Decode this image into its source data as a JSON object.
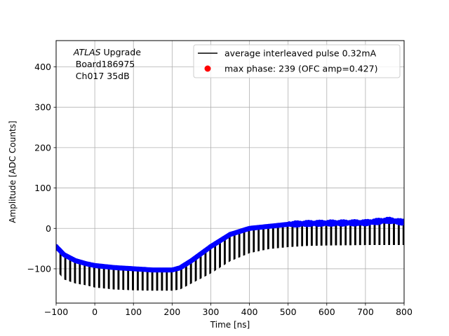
{
  "chart_data": {
    "type": "line",
    "title": "",
    "xlabel": "Time [ns]",
    "ylabel": "Amplitude [ADC Counts]",
    "xlim": [
      -100,
      800
    ],
    "ylim": [
      -185,
      465
    ],
    "xticks": [
      -100,
      0,
      100,
      200,
      300,
      400,
      500,
      600,
      700,
      800
    ],
    "yticks": [
      -100,
      0,
      100,
      200,
      300,
      400
    ],
    "grid": true,
    "legend_position": "top-right",
    "annotation": {
      "line1_italic": "ATLAS",
      "line1_rest": " Upgrade",
      "line2": "Board186975",
      "line3": "Ch017 35dB"
    },
    "series": [
      {
        "name": "average interleaved pulse 0.32mA",
        "kind": "line",
        "color": "#000000",
        "description_of_shape": "sawtooth; upper envelope follows the blue points, drops to lower envelope in each period",
        "period_ns": 12.5,
        "upper_envelope": {
          "x": [
            -100,
            -80,
            -50,
            -20,
            0,
            50,
            100,
            150,
            200,
            220,
            250,
            300,
            350,
            400,
            450,
            500,
            550,
            600,
            700,
            800
          ],
          "y": [
            -45,
            -65,
            -80,
            -88,
            -92,
            -97,
            -100,
            -103,
            -103,
            -98,
            -80,
            -45,
            -15,
            0,
            5,
            10,
            12,
            13,
            14,
            15
          ]
        },
        "lower_envelope": {
          "x": [
            -100,
            -80,
            -50,
            -20,
            0,
            50,
            100,
            150,
            200,
            220,
            250,
            300,
            350,
            400,
            450,
            500,
            550,
            600,
            700,
            800
          ],
          "y": [
            -100,
            -125,
            -135,
            -140,
            -145,
            -150,
            -152,
            -153,
            -153,
            -150,
            -135,
            -110,
            -80,
            -60,
            -50,
            -45,
            -42,
            -41,
            -40,
            -40
          ]
        }
      },
      {
        "name": "max phase: 239 (OFC amp=0.427)",
        "kind": "markers",
        "color": "#ff0000",
        "legend_only": true
      },
      {
        "name": "",
        "kind": "markers",
        "color": "#0000ff",
        "description_of_shape": "dense blue dots along the pulse (upper envelope), x step ~3 ns",
        "x": [
          -100,
          -80,
          -50,
          -20,
          0,
          50,
          100,
          150,
          200,
          220,
          250,
          300,
          350,
          400,
          450,
          500,
          550,
          600,
          700,
          760,
          800
        ],
        "y": [
          -45,
          -65,
          -80,
          -88,
          -92,
          -97,
          -100,
          -103,
          -103,
          -98,
          -80,
          -45,
          -15,
          0,
          5,
          10,
          12,
          13,
          14,
          20,
          15
        ]
      }
    ]
  }
}
